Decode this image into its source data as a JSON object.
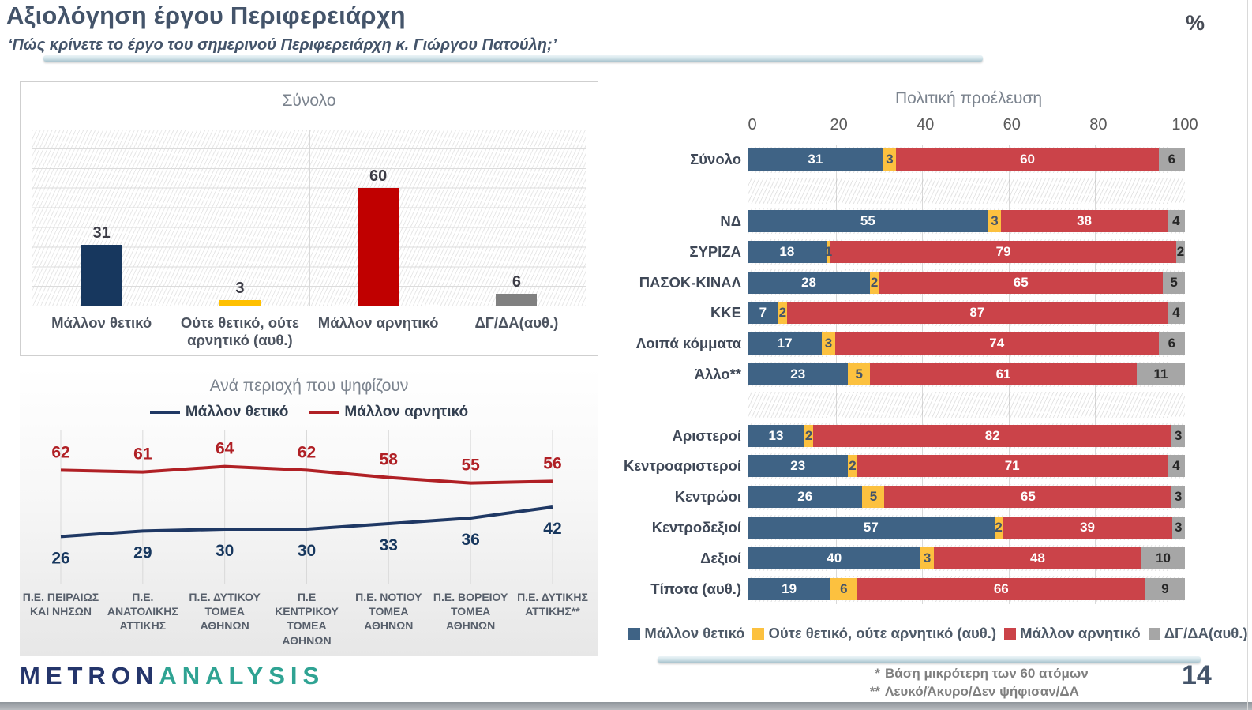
{
  "header": {
    "title": "Αξιολόγηση έργου Περιφερειάρχη",
    "subtitle": "‘Πώς κρίνετε το έργο του σημερινού  Περιφερειάρχη κ. Γιώργου Πατούλη;’",
    "unit": "%"
  },
  "chart_data": [
    {
      "id": "total",
      "type": "bar",
      "title": "Σύνολο",
      "categories": [
        "Μάλλον θετικό",
        "Ούτε θετικό, ούτε αρνητικό (αυθ.)",
        "Μάλλον αρνητικό",
        "ΔΓ/ΔΑ(αυθ.)"
      ],
      "values": [
        31,
        3,
        60,
        6
      ],
      "colors": [
        "#17375E",
        "#FFC000",
        "#C00000",
        "#808080"
      ],
      "ylim": [
        0,
        90
      ],
      "grid": true
    },
    {
      "id": "regions",
      "type": "line",
      "title": "Ανά περιοχή που ψηφίζουν",
      "categories": [
        "Π.Ε. ΠΕΙΡΑΙΩΣ ΚΑΙ ΝΗΣΩΝ",
        "Π.Ε. ΑΝΑΤΟΛΙΚΗΣ ΑΤΤΙΚΗΣ",
        "Π.Ε. ΔΥΤΙΚΟΥ ΤΟΜΕΑ ΑΘΗΝΩΝ",
        "Π.Ε ΚΕΝΤΡΙΚΟΥ ΤΟΜΕΑ ΑΘΗΝΩΝ",
        "Π.Ε. ΝΟΤΙΟΥ ΤΟΜΕΑ ΑΘΗΝΩΝ",
        "Π.Ε. ΒΟΡΕΙΟΥ ΤΟΜΕΑ ΑΘΗΝΩΝ",
        "Π.Ε. ΔΥΤΙΚΗΣ ΑΤΤΙΚΗΣ**"
      ],
      "series": [
        {
          "name": "Μάλλον θετικό",
          "color": "#1F3864",
          "label_color": "#17375E",
          "label_position": "below",
          "values": [
            26,
            29,
            30,
            30,
            33,
            36,
            42
          ]
        },
        {
          "name": "Μάλλον αρνητικό",
          "color": "#B02025",
          "label_color": "#B02025",
          "label_position": "above",
          "values": [
            62,
            61,
            64,
            62,
            58,
            55,
            56
          ]
        }
      ],
      "ylim": [
        0,
        90
      ],
      "grid": true
    },
    {
      "id": "political",
      "type": "stacked-bar-horizontal",
      "title": "Πολιτική προέλευση",
      "axis_ticks": [
        0,
        20,
        40,
        60,
        80,
        100
      ],
      "xlim": [
        0,
        100
      ],
      "legend": [
        "Μάλλον θετικό",
        "Ούτε θετικό, ούτε αρνητικό (αυθ.)",
        "Μάλλον αρνητικό",
        "ΔΓ/ΔΑ(αυθ.)"
      ],
      "segment_colors": [
        "#3F6385",
        "#FCC13F",
        "#CB4349",
        "#A6A6A6"
      ],
      "segment_text_colors": [
        "#FFFFFF",
        "#44546A",
        "#FFFFFF",
        "#262626"
      ],
      "rows": [
        {
          "label": "Σύνολο",
          "values": [
            31,
            3,
            60,
            6
          ]
        },
        {
          "label": "ΝΔ",
          "values": [
            55,
            3,
            38,
            4
          ],
          "gap_before": true
        },
        {
          "label": "ΣΥΡΙΖΑ",
          "values": [
            18,
            1,
            79,
            2
          ]
        },
        {
          "label": "ΠΑΣΟΚ-ΚΙΝΑΛ",
          "values": [
            28,
            2,
            65,
            5
          ]
        },
        {
          "label": "ΚΚΕ",
          "values": [
            7,
            2,
            87,
            4
          ]
        },
        {
          "label": "Λοιπά κόμματα",
          "values": [
            17,
            3,
            74,
            6
          ]
        },
        {
          "label": "Άλλο**",
          "values": [
            23,
            5,
            61,
            11
          ]
        },
        {
          "label": "Αριστεροί",
          "values": [
            13,
            2,
            82,
            3
          ],
          "gap_before": true
        },
        {
          "label": "Κεντροαριστεροί",
          "values": [
            23,
            2,
            71,
            4
          ]
        },
        {
          "label": "Κεντρώοι",
          "values": [
            26,
            5,
            65,
            3
          ]
        },
        {
          "label": "Κεντροδεξιοί",
          "values": [
            57,
            2,
            39,
            3
          ]
        },
        {
          "label": "Δεξιοί",
          "values": [
            40,
            3,
            48,
            10
          ]
        },
        {
          "label": "Τίποτα (αυθ.)",
          "values": [
            19,
            6,
            66,
            9
          ]
        }
      ]
    }
  ],
  "footer": {
    "logo_part1": "METRON",
    "logo_part2": "ANALYSIS",
    "footnotes": [
      {
        "marker": "*",
        "text": "Βάση μικρότερη των 60 ατόμων"
      },
      {
        "marker": "**",
        "text": "Λευκό/Άκυρο/Δεν ψήφισαν/ΔΑ"
      }
    ],
    "page_number": "14"
  }
}
